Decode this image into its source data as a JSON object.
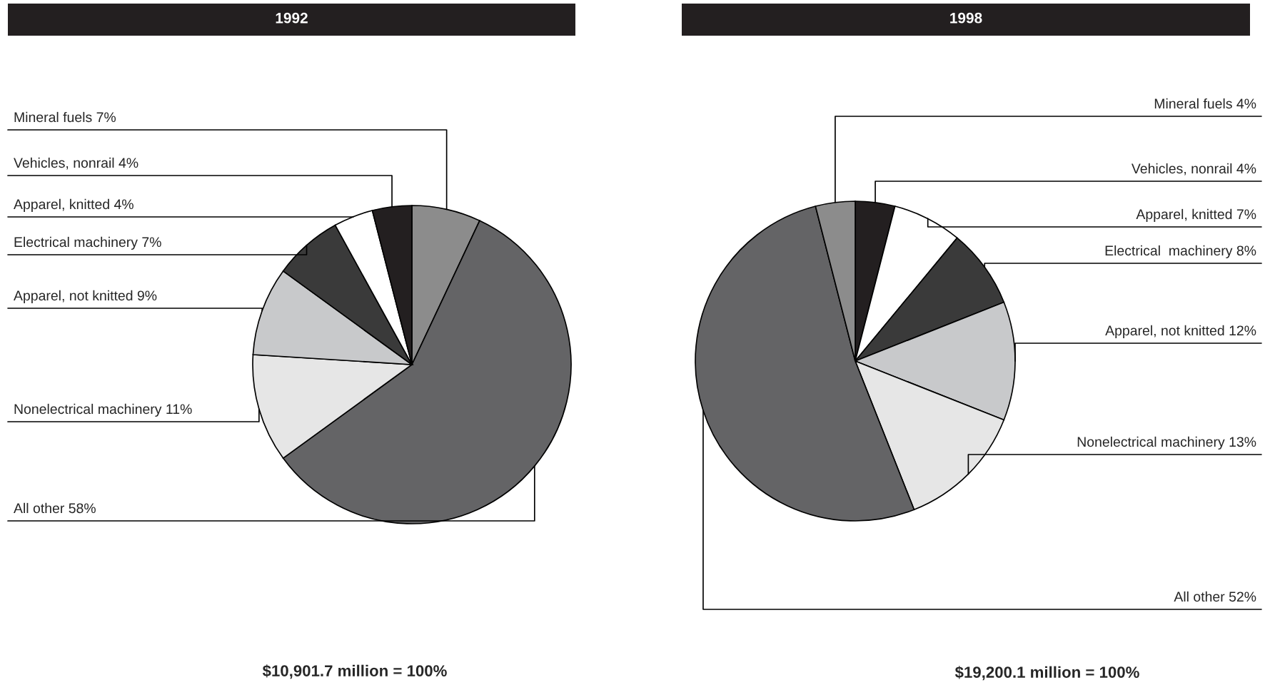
{
  "chart_data": [
    {
      "type": "pie",
      "title": "1992",
      "categories": [
        "Mineral fuels",
        "All other",
        "Nonelectrical machinery",
        "Apparel, not knitted",
        "Electrical machinery",
        "Apparel, knitted",
        "Vehicles, nonrail"
      ],
      "values": [
        7,
        58,
        11,
        9,
        7,
        4,
        4
      ],
      "value_labels": [
        "7%",
        "58%",
        "11%",
        "9%",
        "7%",
        "4%",
        "4%"
      ],
      "colors": [
        "#8c8c8c",
        "#646466",
        "#e6e6e6",
        "#c8c9cb",
        "#3a3a3a",
        "#ffffff",
        "#231f20"
      ],
      "annotations": [
        "$10,901.7 million = 100%"
      ]
    },
    {
      "type": "pie",
      "title": "1998",
      "categories": [
        "Vehicles, nonrail",
        "Apparel, knitted",
        "Electrical  machinery",
        "Apparel, not knitted",
        "Nonelectrical machinery",
        "All other",
        "Mineral fuels"
      ],
      "values": [
        4,
        7,
        8,
        12,
        13,
        52,
        4
      ],
      "value_labels": [
        "4%",
        "7%",
        "8%",
        "12%",
        "13%",
        "52%",
        "4%"
      ],
      "colors": [
        "#231f20",
        "#ffffff",
        "#3a3a3a",
        "#c8c9cb",
        "#e6e6e6",
        "#646466",
        "#8c8c8c"
      ],
      "annotations": [
        "$19,200.1 million = 100%"
      ]
    }
  ]
}
